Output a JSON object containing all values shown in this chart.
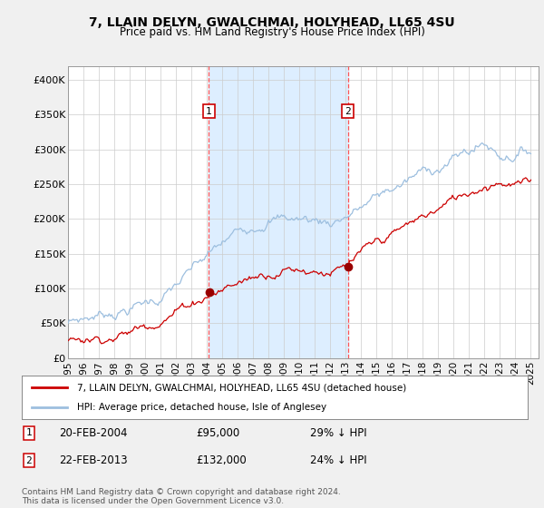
{
  "title": "7, LLAIN DELYN, GWALCHMAI, HOLYHEAD, LL65 4SU",
  "subtitle": "Price paid vs. HM Land Registry's House Price Index (HPI)",
  "ylim": [
    0,
    420000
  ],
  "xlim_start": 1995,
  "xlim_end": 2025.5,
  "sale1_date": 2004.13,
  "sale1_price": 95000,
  "sale1_display": "20-FEB-2004",
  "sale1_pct": "29% ↓ HPI",
  "sale2_date": 2013.13,
  "sale2_price": 132000,
  "sale2_display": "22-FEB-2013",
  "sale2_pct": "24% ↓ HPI",
  "hpi_color": "#9dbfdf",
  "price_color": "#cc0000",
  "sale_marker_color": "#990000",
  "shade_color": "#ddeeff",
  "vline_color": "#ff5555",
  "legend_line1": "7, LLAIN DELYN, GWALCHMAI, HOLYHEAD, LL65 4SU (detached house)",
  "legend_line2": "HPI: Average price, detached house, Isle of Anglesey",
  "footnote": "Contains HM Land Registry data © Crown copyright and database right 2024.\nThis data is licensed under the Open Government Licence v3.0.",
  "bg_color": "#f0f0f0",
  "plot_bg": "#ffffff"
}
